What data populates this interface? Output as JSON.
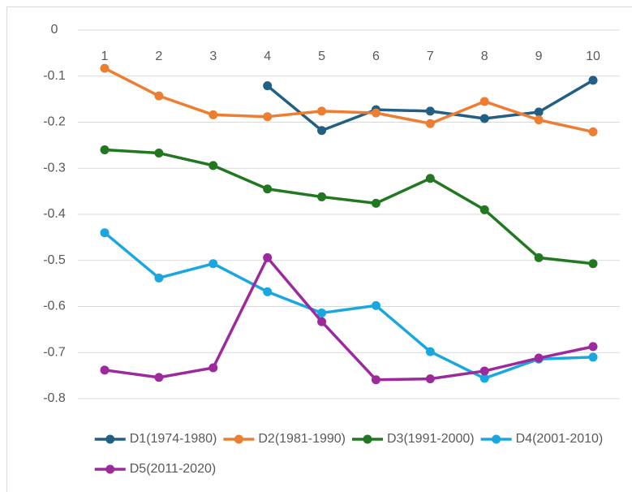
{
  "chart_data": {
    "type": "line",
    "categories": [
      1,
      2,
      3,
      4,
      5,
      6,
      7,
      8,
      9,
      10
    ],
    "series": [
      {
        "name": "D1(1974-1980)",
        "color": "#215f84",
        "values": [
          null,
          null,
          null,
          -0.121,
          -0.218,
          -0.173,
          -0.176,
          -0.192,
          -0.178,
          -0.109
        ]
      },
      {
        "name": "D2(1981-1990)",
        "color": "#ed7d31",
        "values": [
          -0.083,
          -0.143,
          -0.184,
          -0.188,
          -0.176,
          -0.18,
          -0.203,
          -0.155,
          -0.195,
          -0.221
        ]
      },
      {
        "name": "D3(1991-2000)",
        "color": "#217821",
        "values": [
          -0.26,
          -0.267,
          -0.294,
          -0.345,
          -0.362,
          -0.376,
          -0.322,
          -0.39,
          -0.494,
          -0.507
        ]
      },
      {
        "name": "D4(2001-2010)",
        "color": "#1aa7df",
        "values": [
          -0.44,
          -0.538,
          -0.507,
          -0.568,
          -0.614,
          -0.598,
          -0.698,
          -0.756,
          -0.714,
          -0.71
        ]
      },
      {
        "name": "D5(2011-2020)",
        "color": "#9c2a9c",
        "values": [
          -0.738,
          -0.754,
          -0.733,
          -0.494,
          -0.633,
          -0.759,
          -0.757,
          -0.74,
          -0.712,
          -0.687
        ]
      }
    ],
    "ylim": [
      -0.8,
      0
    ],
    "yticks": [
      0,
      -0.1,
      -0.2,
      -0.3,
      -0.4,
      -0.5,
      -0.6,
      -0.7,
      -0.8
    ],
    "grid": true,
    "legend": "bottom"
  }
}
